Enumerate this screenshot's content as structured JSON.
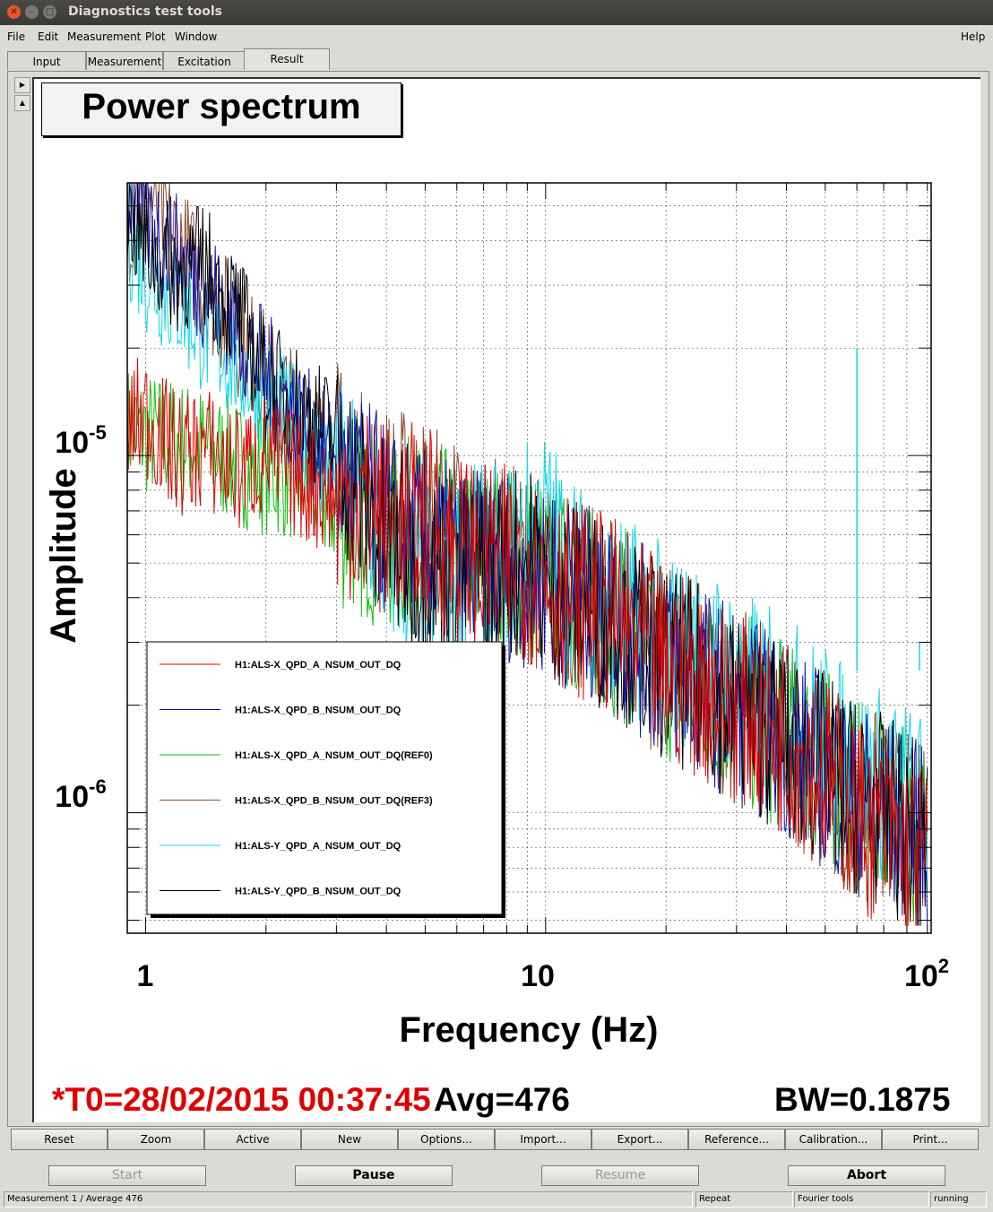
{
  "window": {
    "title": "Diagnostics test tools"
  },
  "menu": {
    "file": "File",
    "edit": "Edit",
    "measurement": "Measurement",
    "plot": "Plot",
    "window": "Window",
    "help": "Help"
  },
  "tabs": [
    {
      "label": "Input"
    },
    {
      "label": "Measurement"
    },
    {
      "label": "Excitation"
    },
    {
      "label": "Result"
    }
  ],
  "plot": {
    "title": "Power spectrum",
    "t0": "*T0=28/02/2015 00:37:45",
    "avg": "Avg=476",
    "bw": "BW=0.1875"
  },
  "chart_data": {
    "type": "line",
    "title": "Power spectrum",
    "xlabel": "Frequency (Hz)",
    "ylabel": "Amplitude",
    "xscale": "log",
    "yscale": "log",
    "xlim": [
      0.9,
      92
    ],
    "ylim": [
      4.6e-07,
      5.8e-05
    ],
    "grid": true,
    "legend_position": "bottom-left",
    "x_tick_labels": [
      "1",
      "10",
      "10^2"
    ],
    "y_tick_labels": [
      "10^-6",
      "10^-5"
    ],
    "series": [
      {
        "name": "H1:ALS-X_QPD_A_NSUM_OUT_DQ",
        "color": "#e00000",
        "x": [
          0.9,
          1.0,
          1.2,
          1.4,
          1.7,
          2.0,
          2.5,
          3.0,
          3.5,
          4.0,
          5.0,
          6.0,
          7.0,
          8.0,
          9.0,
          10.0,
          12.0,
          15.0,
          20.0,
          25.0,
          30.0,
          40.0,
          50.0,
          60.0,
          70.0,
          80.0,
          90.0
        ],
        "y": [
          1.2e-05,
          1.3e-05,
          1e-05,
          1.05e-05,
          9e-06,
          1e-05,
          8.5e-06,
          7.5e-06,
          7.5e-06,
          6.5e-06,
          6.5e-06,
          5.5e-06,
          5e-06,
          5e-06,
          5e-06,
          4.5e-06,
          4e-06,
          3.5e-06,
          2.6e-06,
          2.3e-06,
          2e-06,
          1.6e-06,
          1.3e-06,
          1e-06,
          9e-07,
          8e-07,
          7e-07
        ]
      },
      {
        "name": "H1:ALS-X_QPD_B_NSUM_OUT_DQ",
        "color": "#1010b0",
        "x": [
          0.9,
          1.0,
          1.2,
          1.4,
          1.7,
          2.0,
          2.5,
          3.0,
          3.5,
          4.0,
          5.0,
          6.0,
          7.0,
          8.0,
          9.0,
          10.0,
          12.0,
          15.0,
          20.0,
          25.0,
          30.0,
          40.0,
          50.0,
          60.0,
          70.0,
          80.0,
          90.0
        ],
        "y": [
          5.5e-05,
          4.6e-05,
          3.6e-05,
          3e-05,
          2.3e-05,
          1.7e-05,
          1.2e-05,
          9.5e-06,
          8e-06,
          6.5e-06,
          5.5e-06,
          5e-06,
          5e-06,
          5e-06,
          4.8e-06,
          4.5e-06,
          4e-06,
          3.5e-06,
          2.6e-06,
          2.3e-06,
          2e-06,
          1.6e-06,
          1.3e-06,
          1.1e-06,
          1e-06,
          9e-07,
          8e-07
        ]
      },
      {
        "name": "H1:ALS-X_QPD_A_NSUM_OUT_DQ(REF0)",
        "color": "#10c010",
        "x": [
          0.9,
          1.0,
          1.2,
          1.4,
          1.7,
          2.0,
          2.5,
          3.0,
          3.5,
          4.0,
          5.0,
          6.0,
          7.0,
          8.0,
          9.0,
          10.0,
          12.0,
          15.0,
          20.0,
          25.0,
          30.0,
          40.0,
          50.0,
          60.0,
          70.0,
          80.0,
          90.0
        ],
        "y": [
          1.2e-05,
          1.15e-05,
          1.1e-05,
          1.05e-05,
          9.5e-06,
          9e-06,
          8.5e-06,
          7e-06,
          6.5e-06,
          6e-06,
          6e-06,
          5.5e-06,
          5e-06,
          5e-06,
          5e-06,
          4.5e-06,
          4e-06,
          3.5e-06,
          2.6e-06,
          2.3e-06,
          2e-06,
          1.6e-06,
          1.35e-06,
          1.1e-06,
          1e-06,
          9e-07,
          8e-07
        ]
      },
      {
        "name": "H1:ALS-X_QPD_B_NSUM_OUT_DQ(REF3)",
        "color": "#8b4a2f",
        "x": [
          0.9,
          1.0,
          1.2,
          1.4,
          1.7,
          2.0,
          2.5,
          3.0,
          3.5,
          4.0,
          5.0,
          6.0,
          7.0,
          8.0,
          9.0,
          10.0,
          12.0,
          15.0,
          20.0,
          25.0,
          30.0,
          40.0,
          50.0,
          60.0,
          70.0,
          80.0,
          90.0
        ],
        "y": [
          4.5e-05,
          5.6e-05,
          4e-05,
          3e-05,
          2.2e-05,
          1.7e-05,
          1.2e-05,
          1e-05,
          8e-06,
          7.5e-06,
          7e-06,
          6e-06,
          5.5e-06,
          5e-06,
          5e-06,
          4.5e-06,
          4e-06,
          3.5e-06,
          2.6e-06,
          2.3e-06,
          2e-06,
          1.6e-06,
          1.3e-06,
          1.1e-06,
          1e-06,
          9e-07,
          8e-07
        ]
      },
      {
        "name": "H1:ALS-Y_QPD_A_NSUM_OUT_DQ",
        "color": "#10d8e8",
        "x": [
          0.9,
          1.0,
          1.2,
          1.4,
          1.7,
          2.0,
          2.5,
          3.0,
          3.5,
          4.0,
          5.0,
          6.0,
          7.0,
          8.0,
          9.0,
          10.0,
          12.0,
          15.0,
          20.0,
          25.0,
          30.0,
          40.0,
          50.0,
          60.0,
          70.0,
          80.0,
          90.0
        ],
        "y": [
          4.2e-05,
          3.3e-05,
          2.7e-05,
          2.2e-05,
          1.8e-05,
          1.5e-05,
          1.1e-05,
          9e-06,
          7e-06,
          5.5e-06,
          4.5e-06,
          5e-06,
          5e-06,
          5e-06,
          6e-06,
          6.5e-06,
          4.5e-06,
          3.8e-06,
          3e-06,
          2.6e-06,
          2.3e-06,
          1.9e-06,
          1.6e-06,
          1.3e-06,
          1.2e-06,
          1.1e-06,
          1e-06
        ]
      },
      {
        "name": "H1:ALS-Y_QPD_B_NSUM_OUT_DQ",
        "color": "#000000",
        "x": [
          0.9,
          1.0,
          1.2,
          1.4,
          1.7,
          2.0,
          2.5,
          3.0,
          3.5,
          4.0,
          5.0,
          6.0,
          7.0,
          8.0,
          9.0,
          10.0,
          12.0,
          15.0,
          20.0,
          25.0,
          30.0,
          40.0,
          50.0,
          60.0,
          70.0,
          80.0,
          90.0
        ],
        "y": [
          5e-05,
          3.8e-05,
          3.3e-05,
          3.4e-05,
          2.5e-05,
          1.6e-05,
          1.35e-05,
          1.1e-05,
          7.5e-06,
          5.8e-06,
          5e-06,
          5e-06,
          4.5e-06,
          5e-06,
          5e-06,
          4.5e-06,
          4e-06,
          3.5e-06,
          2.6e-06,
          2.3e-06,
          2e-06,
          1.6e-06,
          1.3e-06,
          1.1e-06,
          1e-06,
          9e-07,
          8e-07
        ]
      }
    ],
    "peaks": [
      {
        "x": 60,
        "y": 2e-05,
        "series": "H1:ALS-Y_QPD_A_NSUM_OUT_DQ"
      },
      {
        "x": 86,
        "y": 3e-06,
        "series": "H1:ALS-Y_QPD_A_NSUM_OUT_DQ"
      }
    ]
  },
  "buttons": {
    "reset": "Reset",
    "zoom": "Zoom",
    "active": "Active",
    "new": "New",
    "options": "Options...",
    "import": "Import...",
    "export": "Export...",
    "reference": "Reference...",
    "calibration": "Calibration...",
    "print": "Print..."
  },
  "controls": {
    "start": "Start",
    "pause": "Pause",
    "resume": "Resume",
    "abort": "Abort"
  },
  "status": {
    "measurement": "Measurement 1 / Average 476",
    "mode": "Repeat",
    "tools": "Fourier tools",
    "state": "running"
  }
}
